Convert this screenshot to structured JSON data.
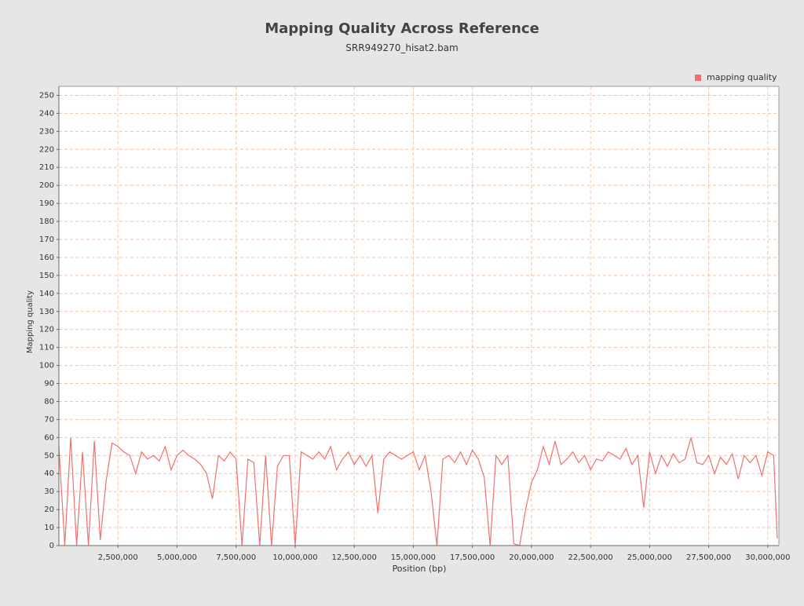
{
  "chart_data": {
    "type": "line",
    "title": "Mapping Quality Across Reference",
    "subtitle": "SRR949270_hisat2.bam",
    "x_label": "Position (bp)",
    "y_label": "Mapping quality",
    "legend_position": "top-right",
    "grid": true,
    "xlim": [
      0,
      30470000
    ],
    "ylim": [
      0,
      255
    ],
    "xticks": [
      {
        "value": 2500000,
        "label": "2,500,000"
      },
      {
        "value": 5000000,
        "label": "5,000,000"
      },
      {
        "value": 7500000,
        "label": "7,500,000"
      },
      {
        "value": 10000000,
        "label": "10,000,000"
      },
      {
        "value": 12500000,
        "label": "12,500,000"
      },
      {
        "value": 15000000,
        "label": "15,000,000"
      },
      {
        "value": 17500000,
        "label": "17,500,000"
      },
      {
        "value": 20000000,
        "label": "20,000,000"
      },
      {
        "value": 22500000,
        "label": "22,500,000"
      },
      {
        "value": 25000000,
        "label": "25,000,000"
      },
      {
        "value": 27500000,
        "label": "27,500,000"
      },
      {
        "value": 30000000,
        "label": "30,000,000"
      }
    ],
    "yticks": [
      0,
      10,
      20,
      30,
      40,
      50,
      60,
      70,
      80,
      90,
      100,
      110,
      120,
      130,
      140,
      150,
      160,
      170,
      180,
      190,
      200,
      210,
      220,
      230,
      240,
      250
    ],
    "x": [
      0,
      250000,
      500000,
      750000,
      1000000,
      1250000,
      1500000,
      1750000,
      2000000,
      2250000,
      2500000,
      2750000,
      3000000,
      3250000,
      3500000,
      3750000,
      4000000,
      4250000,
      4500000,
      4750000,
      5000000,
      5250000,
      5500000,
      5750000,
      6000000,
      6250000,
      6500000,
      6750000,
      7000000,
      7250000,
      7500000,
      7750000,
      8000000,
      8250000,
      8500000,
      8750000,
      9000000,
      9250000,
      9500000,
      9750000,
      10000000,
      10250000,
      10500000,
      10750000,
      11000000,
      11250000,
      11500000,
      11750000,
      12000000,
      12250000,
      12500000,
      12750000,
      13000000,
      13250000,
      13500000,
      13750000,
      14000000,
      14250000,
      14500000,
      14750000,
      15000000,
      15250000,
      15500000,
      15750000,
      16000000,
      16250000,
      16500000,
      16750000,
      17000000,
      17250000,
      17500000,
      17750000,
      18000000,
      18250000,
      18500000,
      18750000,
      19000000,
      19250000,
      19500000,
      19750000,
      20000000,
      20250000,
      20500000,
      20750000,
      21000000,
      21250000,
      21500000,
      21750000,
      22000000,
      22250000,
      22500000,
      22750000,
      23000000,
      23250000,
      23500000,
      23750000,
      24000000,
      24250000,
      24500000,
      24750000,
      25000000,
      25250000,
      25500000,
      25750000,
      26000000,
      26250000,
      26500000,
      26750000,
      27000000,
      27250000,
      27500000,
      27750000,
      28000000,
      28250000,
      28500000,
      28750000,
      29000000,
      29250000,
      29500000,
      29750000,
      30000000,
      30250000,
      30400000
    ],
    "series": [
      {
        "name": "mapping quality",
        "color": "#f07070",
        "values": [
          55,
          0,
          60,
          0,
          52,
          0,
          58,
          3,
          36,
          57,
          55,
          52,
          50,
          40,
          52,
          48,
          50,
          47,
          55,
          42,
          50,
          53,
          50,
          48,
          45,
          40,
          26,
          50,
          47,
          52,
          48,
          0,
          48,
          46,
          0,
          50,
          0,
          44,
          50,
          50,
          0,
          52,
          50,
          48,
          52,
          48,
          55,
          42,
          48,
          52,
          45,
          50,
          44,
          50,
          18,
          48,
          52,
          50,
          48,
          50,
          52,
          42,
          50,
          30,
          0,
          48,
          50,
          46,
          52,
          45,
          53,
          48,
          38,
          0,
          50,
          45,
          50,
          1,
          0,
          20,
          35,
          42,
          55,
          45,
          58,
          45,
          48,
          52,
          46,
          50,
          42,
          48,
          47,
          52,
          50,
          48,
          54,
          45,
          50,
          21,
          52,
          40,
          50,
          44,
          51,
          46,
          48,
          60,
          46,
          45,
          50,
          40,
          49,
          45,
          51,
          37,
          50,
          46,
          50,
          39,
          52,
          50,
          4
        ]
      }
    ]
  }
}
